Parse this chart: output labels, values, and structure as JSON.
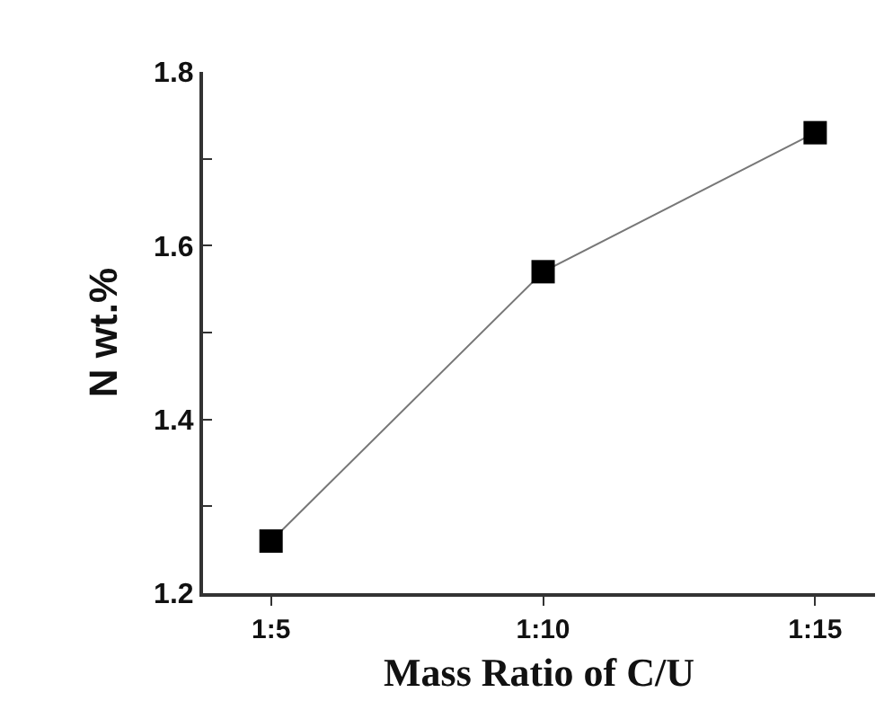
{
  "chart_data": {
    "type": "line",
    "xlabel": "Mass Ratio of C/U",
    "ylabel": "N wt.%",
    "categories": [
      "1:5",
      "1:10",
      "1:15"
    ],
    "series": [
      {
        "color": "#000000",
        "values": [
          1.26,
          1.57,
          1.73
        ]
      }
    ],
    "ylim": [
      1.2,
      1.8
    ],
    "yticks": [
      1.2,
      {
        "value": 1.3,
        "label": null
      },
      1.4,
      {
        "value": 1.5,
        "label": null
      },
      1.6,
      {
        "value": 1.7,
        "label": null
      },
      1.8
    ],
    "marker": "square",
    "line_style": "solid",
    "grid": false
  }
}
